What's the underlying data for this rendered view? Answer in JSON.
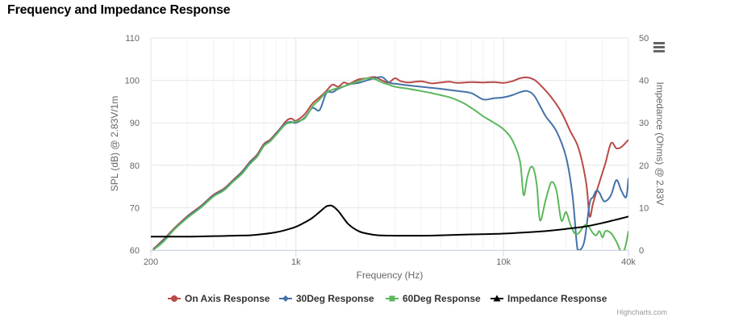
{
  "title": "Frequency and Impedance Response",
  "menu_icon": "hamburger-menu-icon",
  "credits": "Highcharts.com",
  "chart_data": {
    "type": "line",
    "title": "Frequency and Impedance Response",
    "xlabel": "Frequency (Hz)",
    "ylabel_left": "SPL (dB) @ 2.83V/1m",
    "ylabel_right": "Impedance (Ohms) @ 2.83V",
    "x_scale": "log",
    "xlim": [
      200,
      40000
    ],
    "x_ticks": [
      200,
      1000,
      10000,
      40000
    ],
    "x_tick_labels": [
      "200",
      "1k",
      "10k",
      "40k"
    ],
    "ylim_left": [
      60,
      110
    ],
    "y_ticks_left": [
      60,
      70,
      80,
      90,
      100,
      110
    ],
    "ylim_right": [
      0,
      50
    ],
    "y_ticks_right": [
      0,
      10,
      20,
      30,
      40,
      50
    ],
    "grid": true,
    "legend_position": "bottom",
    "series": [
      {
        "name": "On Axis Response",
        "color": "#b94a48",
        "axis": "left",
        "marker": "circle",
        "points": [
          [
            205,
            60.2
          ],
          [
            230,
            62.5
          ],
          [
            260,
            65.2
          ],
          [
            300,
            68.0
          ],
          [
            350,
            70.5
          ],
          [
            400,
            73.0
          ],
          [
            450,
            74.5
          ],
          [
            500,
            76.6
          ],
          [
            550,
            78.5
          ],
          [
            600,
            80.8
          ],
          [
            650,
            82.5
          ],
          [
            700,
            85.0
          ],
          [
            750,
            86.0
          ],
          [
            800,
            87.5
          ],
          [
            850,
            89.0
          ],
          [
            900,
            90.5
          ],
          [
            950,
            91.0
          ],
          [
            1000,
            90.5
          ],
          [
            1100,
            92.0
          ],
          [
            1200,
            94.5
          ],
          [
            1300,
            96.0
          ],
          [
            1400,
            97.5
          ],
          [
            1500,
            99.0
          ],
          [
            1600,
            98.5
          ],
          [
            1700,
            99.5
          ],
          [
            1800,
            99.2
          ],
          [
            2000,
            100.2
          ],
          [
            2200,
            100.5
          ],
          [
            2400,
            100.8
          ],
          [
            2600,
            100.0
          ],
          [
            2800,
            99.5
          ],
          [
            3000,
            100.5
          ],
          [
            3200,
            99.8
          ],
          [
            3500,
            99.5
          ],
          [
            4000,
            99.8
          ],
          [
            4500,
            99.3
          ],
          [
            5000,
            99.5
          ],
          [
            5500,
            99.7
          ],
          [
            6000,
            99.4
          ],
          [
            7000,
            99.6
          ],
          [
            8000,
            99.5
          ],
          [
            9000,
            99.6
          ],
          [
            10000,
            99.4
          ],
          [
            11000,
            99.8
          ],
          [
            12000,
            100.5
          ],
          [
            13000,
            100.7
          ],
          [
            14000,
            100.2
          ],
          [
            15000,
            99.0
          ],
          [
            17000,
            96.0
          ],
          [
            19000,
            92.5
          ],
          [
            21000,
            88.0
          ],
          [
            23000,
            84.0
          ],
          [
            25000,
            76.0
          ],
          [
            26000,
            68.0
          ],
          [
            27000,
            71.0
          ],
          [
            29000,
            76.0
          ],
          [
            31000,
            80.5
          ],
          [
            33000,
            85.2
          ],
          [
            35000,
            84.0
          ],
          [
            37000,
            84.3
          ],
          [
            40000,
            86.0
          ]
        ]
      },
      {
        "name": "30Deg Response",
        "color": "#4572a7",
        "axis": "left",
        "marker": "diamond",
        "points": [
          [
            205,
            60.0
          ],
          [
            230,
            62.3
          ],
          [
            260,
            65.0
          ],
          [
            300,
            67.8
          ],
          [
            350,
            70.3
          ],
          [
            400,
            72.8
          ],
          [
            450,
            74.3
          ],
          [
            500,
            76.4
          ],
          [
            550,
            78.3
          ],
          [
            600,
            80.6
          ],
          [
            650,
            82.2
          ],
          [
            700,
            84.7
          ],
          [
            750,
            85.8
          ],
          [
            800,
            87.3
          ],
          [
            850,
            88.8
          ],
          [
            900,
            90.0
          ],
          [
            950,
            90.2
          ],
          [
            1000,
            90.0
          ],
          [
            1100,
            91.2
          ],
          [
            1200,
            93.5
          ],
          [
            1300,
            93.0
          ],
          [
            1400,
            97.0
          ],
          [
            1500,
            97.2
          ],
          [
            1600,
            98.0
          ],
          [
            1800,
            99.0
          ],
          [
            2000,
            99.4
          ],
          [
            2200,
            100.0
          ],
          [
            2400,
            100.5
          ],
          [
            2600,
            100.8
          ],
          [
            2800,
            99.5
          ],
          [
            3000,
            99.2
          ],
          [
            3500,
            98.8
          ],
          [
            4000,
            98.5
          ],
          [
            5000,
            98.0
          ],
          [
            6000,
            97.5
          ],
          [
            7000,
            97.0
          ],
          [
            8000,
            95.5
          ],
          [
            9000,
            95.8
          ],
          [
            10000,
            96.0
          ],
          [
            11000,
            96.5
          ],
          [
            12000,
            97.2
          ],
          [
            13000,
            97.5
          ],
          [
            14000,
            96.5
          ],
          [
            15000,
            94.0
          ],
          [
            16000,
            91.5
          ],
          [
            18000,
            88.0
          ],
          [
            20000,
            82.0
          ],
          [
            21500,
            73.0
          ],
          [
            22500,
            62.0
          ],
          [
            23000,
            60.0
          ],
          [
            24500,
            62.0
          ],
          [
            26000,
            71.0
          ],
          [
            27000,
            72.5
          ],
          [
            28000,
            74.0
          ],
          [
            29000,
            73.5
          ],
          [
            30000,
            72.0
          ],
          [
            31000,
            71.5
          ],
          [
            33000,
            73.0
          ],
          [
            35000,
            76.5
          ],
          [
            37000,
            74.0
          ],
          [
            39000,
            72.5
          ],
          [
            40000,
            77.0
          ]
        ]
      },
      {
        "name": "60Deg Response",
        "color": "#5cb85c",
        "axis": "left",
        "marker": "square",
        "points": [
          [
            205,
            60.0
          ],
          [
            230,
            62.0
          ],
          [
            260,
            64.9
          ],
          [
            300,
            67.6
          ],
          [
            350,
            70.1
          ],
          [
            400,
            72.6
          ],
          [
            450,
            74.1
          ],
          [
            500,
            76.2
          ],
          [
            550,
            78.0
          ],
          [
            600,
            80.3
          ],
          [
            650,
            82.0
          ],
          [
            700,
            84.5
          ],
          [
            750,
            85.6
          ],
          [
            800,
            87.1
          ],
          [
            850,
            88.6
          ],
          [
            900,
            89.8
          ],
          [
            950,
            90.0
          ],
          [
            1000,
            90.3
          ],
          [
            1100,
            91.0
          ],
          [
            1200,
            93.8
          ],
          [
            1300,
            95.5
          ],
          [
            1400,
            97.2
          ],
          [
            1500,
            97.8
          ],
          [
            1600,
            98.2
          ],
          [
            1800,
            99.0
          ],
          [
            2000,
            99.8
          ],
          [
            2200,
            100.5
          ],
          [
            2400,
            100.3
          ],
          [
            2600,
            99.5
          ],
          [
            2800,
            99.0
          ],
          [
            3000,
            98.5
          ],
          [
            3500,
            98.0
          ],
          [
            4000,
            97.5
          ],
          [
            4500,
            97.0
          ],
          [
            5000,
            96.5
          ],
          [
            5500,
            96.0
          ],
          [
            6000,
            95.3
          ],
          [
            6500,
            94.5
          ],
          [
            7000,
            93.5
          ],
          [
            7500,
            92.5
          ],
          [
            8000,
            91.5
          ],
          [
            9000,
            90.0
          ],
          [
            10000,
            88.5
          ],
          [
            11000,
            86.0
          ],
          [
            12000,
            81.0
          ],
          [
            12500,
            73.0
          ],
          [
            13000,
            77.0
          ],
          [
            13500,
            79.5
          ],
          [
            14000,
            79.0
          ],
          [
            14500,
            75.0
          ],
          [
            15000,
            67.0
          ],
          [
            16000,
            72.0
          ],
          [
            17000,
            76.0
          ],
          [
            18000,
            74.0
          ],
          [
            19000,
            67.0
          ],
          [
            20000,
            69.0
          ],
          [
            21000,
            66.0
          ],
          [
            22000,
            64.0
          ],
          [
            23000,
            64.0
          ],
          [
            25000,
            66.0
          ],
          [
            27000,
            64.0
          ],
          [
            28000,
            63.5
          ],
          [
            29000,
            64.5
          ],
          [
            30000,
            63.0
          ],
          [
            31000,
            64.5
          ],
          [
            33000,
            64.0
          ],
          [
            35000,
            62.0
          ],
          [
            37000,
            59.5
          ],
          [
            38500,
            60.5
          ],
          [
            40000,
            64.5
          ]
        ]
      },
      {
        "name": "Impedance Response",
        "color": "#000000",
        "axis": "right",
        "marker": "triangle",
        "points": [
          [
            200,
            3.2
          ],
          [
            300,
            3.2
          ],
          [
            400,
            3.3
          ],
          [
            500,
            3.4
          ],
          [
            600,
            3.5
          ],
          [
            700,
            3.8
          ],
          [
            800,
            4.2
          ],
          [
            900,
            4.8
          ],
          [
            1000,
            5.5
          ],
          [
            1100,
            6.5
          ],
          [
            1200,
            7.6
          ],
          [
            1300,
            9.0
          ],
          [
            1400,
            10.3
          ],
          [
            1450,
            10.5
          ],
          [
            1500,
            10.4
          ],
          [
            1600,
            9.2
          ],
          [
            1700,
            7.5
          ],
          [
            1800,
            6.0
          ],
          [
            2000,
            4.5
          ],
          [
            2200,
            3.9
          ],
          [
            2500,
            3.5
          ],
          [
            3000,
            3.4
          ],
          [
            4000,
            3.4
          ],
          [
            5000,
            3.5
          ],
          [
            7000,
            3.7
          ],
          [
            10000,
            3.9
          ],
          [
            15000,
            4.4
          ],
          [
            20000,
            5.0
          ],
          [
            25000,
            5.6
          ],
          [
            30000,
            6.4
          ],
          [
            35000,
            7.2
          ],
          [
            40000,
            7.9
          ]
        ]
      }
    ]
  }
}
